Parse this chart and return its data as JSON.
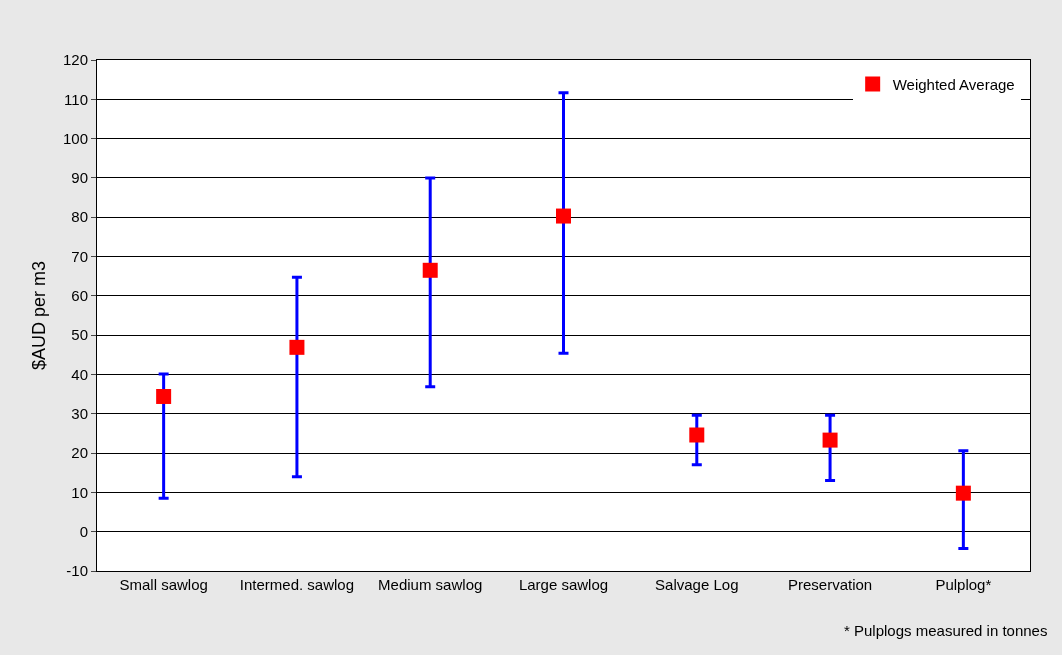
{
  "chart_data": {
    "type": "scatter",
    "ylabel": "$AUD per m3",
    "categories": [
      "Small sawlog",
      "Intermed. sawlog",
      "Medium sawlog",
      "Large sawlog",
      "Salvage Log",
      "Preservation",
      "Pulplog*"
    ],
    "series": [
      {
        "name": "Weighted Average",
        "color": "#ff0000",
        "values": [
          34.4,
          46.9,
          66.5,
          80.3,
          24.6,
          23.3,
          9.8
        ],
        "errors": [
          [
            8.5,
            40.1
          ],
          [
            14,
            64.7
          ],
          [
            36.9,
            90
          ],
          [
            45.4,
            111.7
          ],
          [
            17,
            29.6
          ],
          [
            13,
            29.6
          ],
          [
            -4.3,
            20.6
          ]
        ]
      }
    ],
    "ylim": [
      -10,
      120
    ],
    "yticks": [
      -10,
      0,
      10,
      20,
      30,
      40,
      50,
      60,
      70,
      80,
      90,
      100,
      110,
      120
    ],
    "grid": "y",
    "legend": "top right",
    "marker": "square",
    "annotations": [
      "* Pulplogs measured in tonnes"
    ]
  }
}
